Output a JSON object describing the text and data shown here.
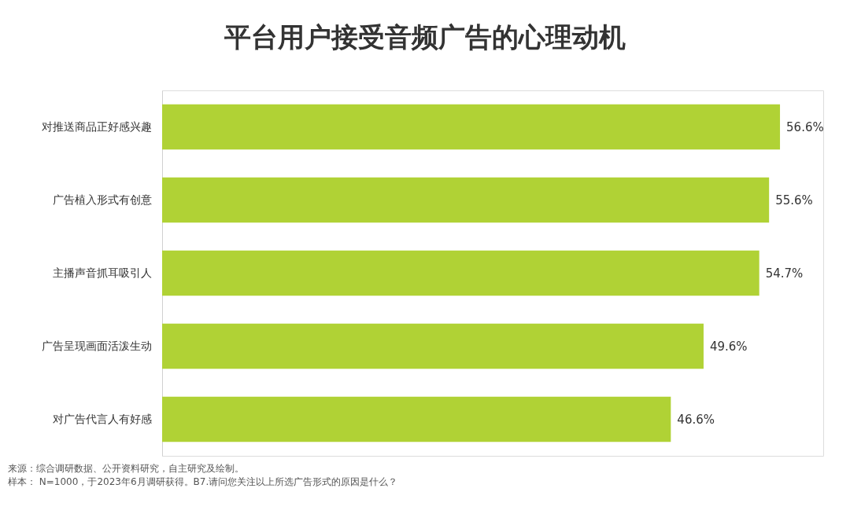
{
  "chart_data": {
    "type": "bar",
    "orientation": "horizontal",
    "title": "平台用户接受音频广告的心理动机",
    "categories": [
      "对推送商品正好感兴趣",
      "广告植入形式有创意",
      "主播声音抓耳吸引人",
      "广告呈现画面活泼生动",
      "对广告代言人有好感"
    ],
    "values": [
      56.6,
      55.6,
      54.7,
      49.6,
      46.6
    ],
    "value_labels": [
      "56.6%",
      "55.6%",
      "54.7%",
      "49.6%",
      "46.6%"
    ],
    "color": "#b0d235",
    "grid": false,
    "annotations": [
      "来源：综合调研数据、公开资料研究，自主研究及绘制。",
      "样本： N=1000，于2023年6月调研获得。B7.请问您关注以上所选广告形式的原因是什么？"
    ]
  }
}
